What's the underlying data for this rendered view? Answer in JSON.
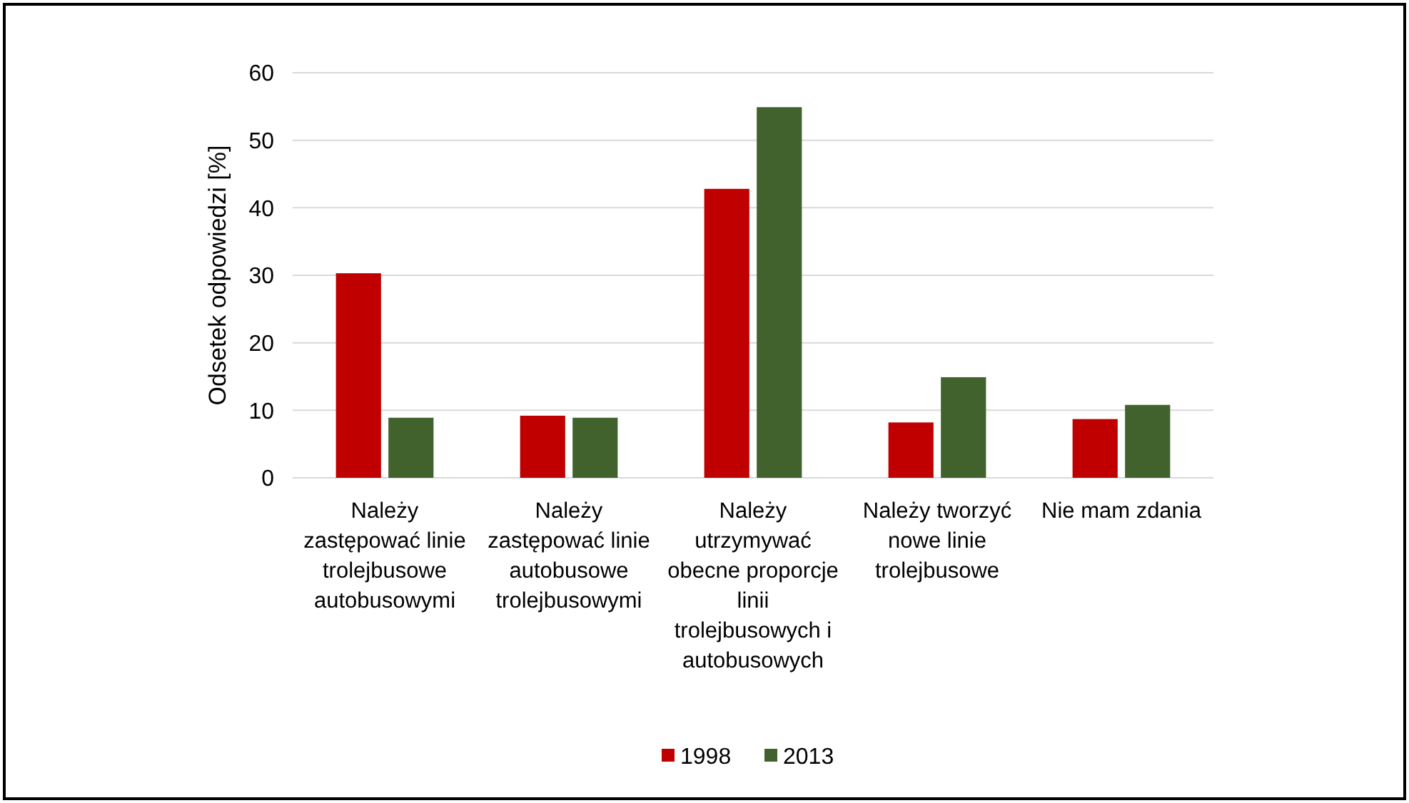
{
  "chart_data": {
    "type": "bar",
    "ylabel": "Odsetek odpowiedzi [%]",
    "categories": [
      "Należy zastępować linie trolejbusowe autobusowymi",
      "Należy zastępować linie autobusowe trolejbusowymi",
      "Należy utrzymywać obecne proporcje linii trolejbusowych i autobusowych",
      "Należy tworzyć nowe linie trolejbusowe",
      "Nie mam zdania"
    ],
    "series": [
      {
        "name": "1998",
        "color": "#c00000",
        "values": [
          30.3,
          9.2,
          42.8,
          8.2,
          8.7
        ]
      },
      {
        "name": "2013",
        "color": "#41622d",
        "values": [
          8.9,
          8.9,
          54.9,
          14.9,
          10.8
        ]
      }
    ],
    "ylim": [
      0,
      60
    ],
    "yticks": [
      0,
      10,
      20,
      30,
      40,
      50,
      60
    ],
    "grid": "y",
    "legend": "bottom"
  }
}
